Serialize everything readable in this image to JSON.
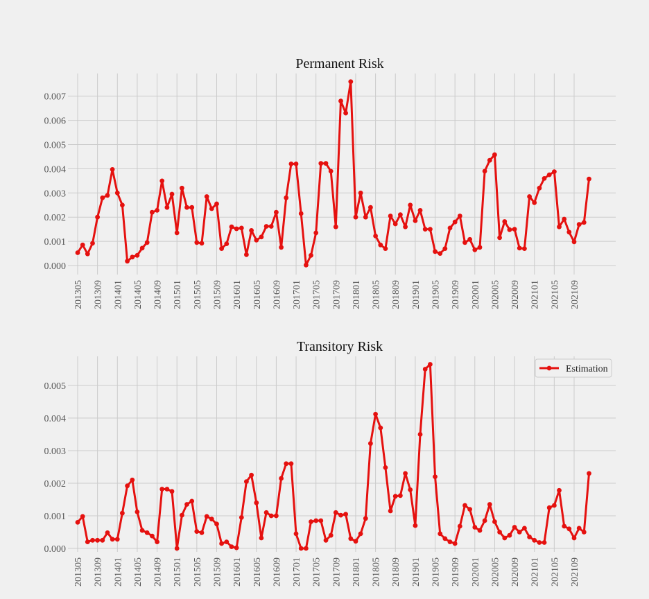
{
  "chart_data": [
    {
      "type": "line",
      "title": "Permanent Risk",
      "xlabel": "",
      "ylabel": "",
      "ylim": [
        -0.0003,
        0.0077
      ],
      "y_ticks": [
        "0.000",
        "0.001",
        "0.002",
        "0.003",
        "0.004",
        "0.005",
        "0.006",
        "0.007"
      ],
      "x_tick_labels": [
        "201305",
        "201309",
        "201401",
        "201405",
        "201409",
        "201501",
        "201505",
        "201509",
        "201601",
        "201605",
        "201609",
        "201701",
        "201705",
        "201709",
        "201801",
        "201805",
        "201809",
        "201901",
        "201905",
        "201909",
        "202001",
        "202005",
        "202009",
        "202101",
        "202105",
        "202109"
      ],
      "grid": true,
      "legend": null,
      "series": [
        {
          "color": "#e5110f",
          "values": [
            0.00053,
            0.00085,
            0.00048,
            0.00092,
            0.002,
            0.0028,
            0.0029,
            0.00397,
            0.003,
            0.0025,
            0.00018,
            0.00035,
            0.00042,
            0.00072,
            0.00095,
            0.0022,
            0.00228,
            0.0035,
            0.0024,
            0.00295,
            0.00135,
            0.0032,
            0.0024,
            0.0024,
            0.00095,
            0.00092,
            0.00285,
            0.00235,
            0.00255,
            0.0007,
            0.0009,
            0.0016,
            0.00152,
            0.00155,
            0.00045,
            0.00145,
            0.00105,
            0.00118,
            0.00162,
            0.00162,
            0.0022,
            0.00075,
            0.0028,
            0.0042,
            0.0042,
            0.00215,
            2e-05,
            0.00042,
            0.00135,
            0.00422,
            0.00422,
            0.0039,
            0.0016,
            0.0068,
            0.0063,
            0.0076,
            0.002,
            0.003,
            0.002,
            0.0024,
            0.00122,
            0.00085,
            0.0007,
            0.00205,
            0.00172,
            0.0021,
            0.0016,
            0.0025,
            0.00185,
            0.00228,
            0.0015,
            0.0015,
            0.00058,
            0.0005,
            0.0007,
            0.00155,
            0.0018,
            0.00205,
            0.00095,
            0.00108,
            0.00065,
            0.00075,
            0.0039,
            0.00435,
            0.00458,
            0.00115,
            0.00182,
            0.00148,
            0.0015,
            0.00072,
            0.0007,
            0.00285,
            0.0026,
            0.0032,
            0.0036,
            0.00375,
            0.00388,
            0.0016,
            0.00192,
            0.00138,
            0.00098,
            0.0017,
            0.00178,
            0.00358
          ]
        }
      ]
    },
    {
      "type": "line",
      "title": "Transitory Risk",
      "xlabel": "",
      "ylabel": "",
      "ylim": [
        -0.0002,
        0.0059
      ],
      "y_ticks": [
        "0.000",
        "0.001",
        "0.002",
        "0.003",
        "0.004",
        "0.005"
      ],
      "x_tick_labels": [
        "201305",
        "201309",
        "201401",
        "201405",
        "201409",
        "201501",
        "201505",
        "201509",
        "201601",
        "201605",
        "201609",
        "201701",
        "201705",
        "201709",
        "201801",
        "201805",
        "201809",
        "201901",
        "201905",
        "201909",
        "202001",
        "202005",
        "202009",
        "202101",
        "202105",
        "202109"
      ],
      "grid": true,
      "legend": "top-right",
      "series": [
        {
          "name": "Estimation",
          "color": "#e5110f",
          "values": [
            0.0008,
            0.00098,
            0.0002,
            0.00025,
            0.00025,
            0.00025,
            0.00048,
            0.00028,
            0.00028,
            0.00108,
            0.00192,
            0.0021,
            0.00112,
            0.00055,
            0.00048,
            0.00038,
            0.0002,
            0.00182,
            0.00182,
            0.00175,
            0.0,
            0.00102,
            0.00135,
            0.00145,
            0.00052,
            0.00048,
            0.00098,
            0.0009,
            0.00075,
            0.00015,
            0.0002,
            5e-05,
            2e-05,
            0.00095,
            0.00205,
            0.00225,
            0.0014,
            0.00032,
            0.0011,
            0.001,
            0.001,
            0.00215,
            0.0026,
            0.0026,
            0.00045,
            0.0,
            0.0,
            0.00082,
            0.00085,
            0.00085,
            0.00025,
            0.0004,
            0.0011,
            0.00102,
            0.00105,
            0.0003,
            0.00022,
            0.00045,
            0.00092,
            0.00322,
            0.00412,
            0.0037,
            0.00248,
            0.00115,
            0.0016,
            0.00162,
            0.0023,
            0.0018,
            0.0007,
            0.0035,
            0.0055,
            0.00565,
            0.0022,
            0.00045,
            0.0003,
            0.0002,
            0.00015,
            0.00068,
            0.00132,
            0.0012,
            0.00065,
            0.00055,
            0.00085,
            0.00135,
            0.00082,
            0.0005,
            0.00032,
            0.0004,
            0.00065,
            0.0005,
            0.00062,
            0.00035,
            0.00025,
            0.00018,
            0.00018,
            0.00125,
            0.00132,
            0.00178,
            0.00068,
            0.0006,
            0.00032,
            0.00062,
            0.0005,
            0.0023
          ]
        }
      ]
    }
  ]
}
